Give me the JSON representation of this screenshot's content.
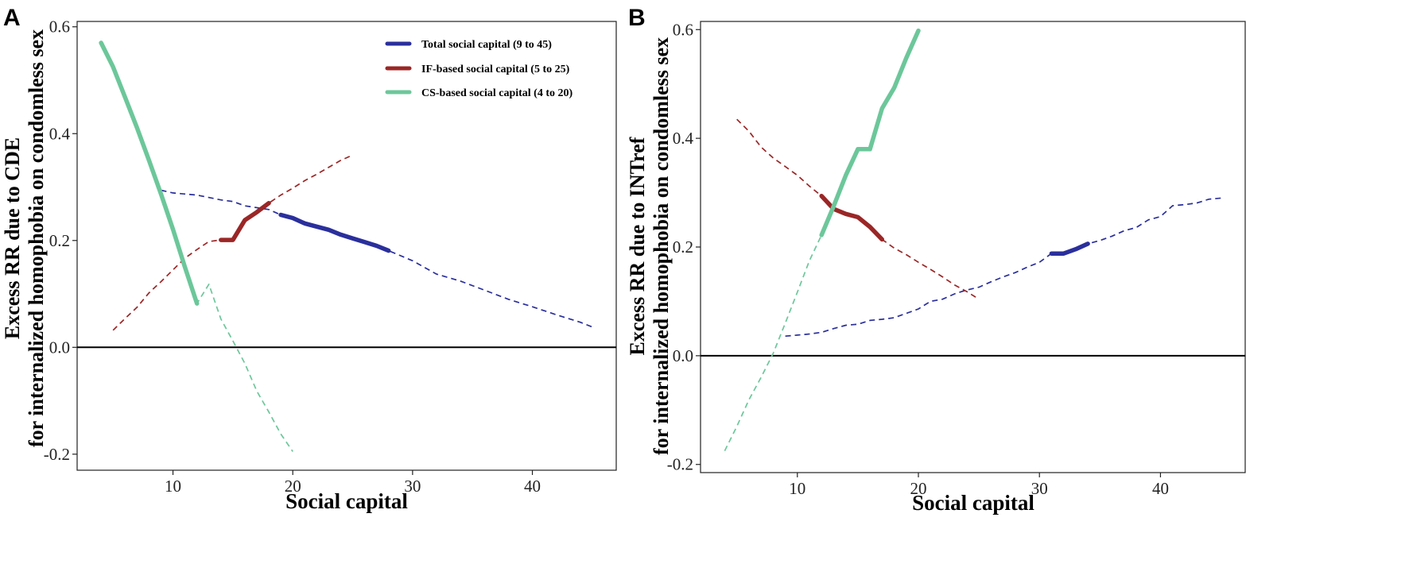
{
  "chart_data": [
    {
      "panel": "A",
      "type": "line",
      "xlabel": "Social capital",
      "ylabel_lines": [
        "Excess RR due to CDE",
        "for internalized homophobia on condomless sex"
      ],
      "xlim": [
        2,
        47
      ],
      "ylim": [
        -0.23,
        0.61
      ],
      "x_ticks": [
        10,
        20,
        30,
        40
      ],
      "y_ticks": [
        -0.2,
        0.0,
        0.2,
        0.4,
        0.6
      ],
      "y_tick_labels": [
        "-0.2",
        "0.0",
        "0.2",
        "0.4",
        "0.6"
      ],
      "reference_line_y": 0.0,
      "grid": false,
      "legend": {
        "position": "top-right",
        "entries": [
          {
            "label": "Total social capital (9 to 45)",
            "color": "#2a2f9c"
          },
          {
            "label": "IF-based social capital (5 to 25)",
            "color": "#9b2626"
          },
          {
            "label": "CS-based social capital (4 to 20)",
            "color": "#6cc79a"
          }
        ]
      },
      "series": [
        {
          "name": "Total social capital (9 to 45)",
          "color": "#2a2f9c",
          "x": [
            9,
            10,
            12,
            14,
            15,
            16,
            18,
            19,
            20,
            21,
            22,
            23,
            24,
            25,
            26,
            27,
            28,
            30,
            32,
            34,
            36,
            38,
            40,
            42,
            44,
            45
          ],
          "y": [
            0.294,
            0.289,
            0.285,
            0.276,
            0.273,
            0.265,
            0.258,
            0.248,
            0.242,
            0.232,
            0.226,
            0.22,
            0.211,
            0.204,
            0.197,
            0.19,
            0.181,
            0.162,
            0.137,
            0.124,
            0.107,
            0.09,
            0.076,
            0.061,
            0.047,
            0.038
          ],
          "solid_range": [
            19,
            28
          ]
        },
        {
          "name": "IF-based social capital (5 to 25)",
          "color": "#9b2626",
          "x": [
            5,
            6,
            7,
            8,
            9,
            10,
            11,
            12,
            13,
            14,
            15,
            16,
            17,
            18,
            19,
            20,
            21,
            22,
            23,
            24,
            25
          ],
          "y": [
            0.032,
            0.054,
            0.075,
            0.102,
            0.123,
            0.145,
            0.167,
            0.183,
            0.198,
            0.201,
            0.201,
            0.238,
            0.253,
            0.27,
            0.285,
            0.298,
            0.312,
            0.324,
            0.337,
            0.35,
            0.36
          ],
          "solid_range": [
            14,
            18
          ]
        },
        {
          "name": "CS-based social capital (4 to 20)",
          "color": "#6cc79a",
          "x": [
            4,
            5,
            6,
            7,
            8,
            9,
            10,
            11,
            12,
            13,
            14,
            15,
            16,
            17,
            18,
            19,
            20
          ],
          "y": [
            0.57,
            0.525,
            0.468,
            0.411,
            0.35,
            0.287,
            0.221,
            0.15,
            0.082,
            0.118,
            0.053,
            0.012,
            -0.03,
            -0.082,
            -0.121,
            -0.162,
            -0.195
          ],
          "solid_range": [
            4,
            12
          ]
        }
      ]
    },
    {
      "panel": "B",
      "type": "line",
      "xlabel": "Social capital",
      "ylabel_lines": [
        "Excess RR due to INTref",
        "for internalized homophobia on condomless sex"
      ],
      "xlim": [
        2,
        47
      ],
      "ylim": [
        -0.215,
        0.615
      ],
      "x_ticks": [
        10,
        20,
        30,
        40
      ],
      "y_ticks": [
        -0.2,
        0.0,
        0.2,
        0.4,
        0.6
      ],
      "y_tick_labels": [
        "-0.2",
        "0.0",
        "0.2",
        "0.4",
        "0.6"
      ],
      "reference_line_y": 0.0,
      "grid": false,
      "series": [
        {
          "name": "Total social capital (9 to 45)",
          "color": "#2a2f9c",
          "x": [
            9,
            10,
            11,
            12,
            13,
            14,
            15,
            16,
            17,
            18,
            19,
            20,
            21,
            22,
            23,
            24,
            25,
            26,
            27,
            28,
            29,
            30,
            31,
            32,
            33,
            34,
            35,
            36,
            37,
            38,
            39,
            40,
            41,
            42,
            43,
            44,
            45
          ],
          "y": [
            0.036,
            0.038,
            0.04,
            0.043,
            0.05,
            0.056,
            0.058,
            0.065,
            0.067,
            0.07,
            0.078,
            0.086,
            0.1,
            0.104,
            0.114,
            0.121,
            0.126,
            0.136,
            0.145,
            0.153,
            0.163,
            0.172,
            0.188,
            0.188,
            0.196,
            0.206,
            0.212,
            0.22,
            0.23,
            0.236,
            0.25,
            0.256,
            0.276,
            0.278,
            0.281,
            0.288,
            0.29
          ],
          "solid_range": [
            31,
            34
          ]
        },
        {
          "name": "IF-based social capital (5 to 25)",
          "color": "#9b2626",
          "x": [
            5,
            6,
            7,
            8,
            9,
            10,
            11,
            12,
            13,
            14,
            15,
            16,
            17,
            18,
            19,
            20,
            21,
            22,
            23,
            24,
            25
          ],
          "y": [
            0.435,
            0.413,
            0.384,
            0.364,
            0.348,
            0.332,
            0.312,
            0.294,
            0.27,
            0.261,
            0.255,
            0.237,
            0.214,
            0.198,
            0.186,
            0.172,
            0.159,
            0.145,
            0.13,
            0.118,
            0.104
          ],
          "solid_range": [
            12,
            17
          ]
        },
        {
          "name": "CS-based social capital (4 to 20)",
          "color": "#6cc79a",
          "x": [
            4,
            5,
            6,
            7,
            8,
            9,
            10,
            11,
            12,
            13,
            14,
            15,
            16,
            17,
            18,
            19,
            20
          ],
          "y": [
            -0.175,
            -0.13,
            -0.081,
            -0.04,
            0.004,
            0.06,
            0.117,
            0.175,
            0.222,
            0.275,
            0.332,
            0.38,
            0.38,
            0.455,
            0.493,
            0.548,
            0.598
          ],
          "solid_range": [
            12,
            20
          ]
        }
      ]
    }
  ]
}
